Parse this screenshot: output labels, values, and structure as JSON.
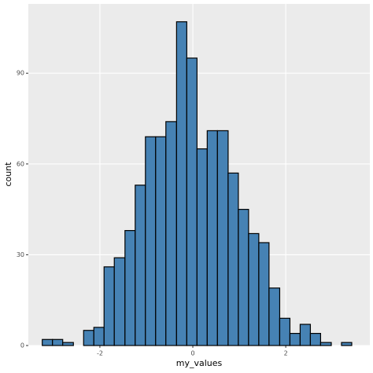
{
  "chart_data": {
    "type": "histogram",
    "x_label": "my_values",
    "y_label": "count",
    "bins": [
      -3.24,
      -3.02,
      -2.8,
      -2.57,
      -2.35,
      -2.13,
      -1.91,
      -1.69,
      -1.46,
      -1.24,
      -1.02,
      -0.8,
      -0.58,
      -0.35,
      -0.13,
      0.09,
      0.31,
      0.53,
      0.76,
      0.98,
      1.2,
      1.42,
      1.64,
      1.87,
      2.09,
      2.31,
      2.53,
      2.75,
      2.98,
      3.2,
      3.42
    ],
    "values": [
      2,
      2,
      1,
      0,
      5,
      6,
      26,
      29,
      38,
      53,
      69,
      69,
      74,
      107,
      95,
      65,
      71,
      71,
      57,
      45,
      37,
      34,
      19,
      9,
      4,
      7,
      4,
      1,
      0,
      1
    ],
    "color": "#4682b4",
    "xlim": [
      -3.54,
      3.81
    ],
    "xticks": [
      -2,
      0,
      2
    ],
    "ylim": [
      0,
      112.9
    ],
    "yticks": [
      0,
      30,
      60,
      90
    ],
    "grid": true
  }
}
